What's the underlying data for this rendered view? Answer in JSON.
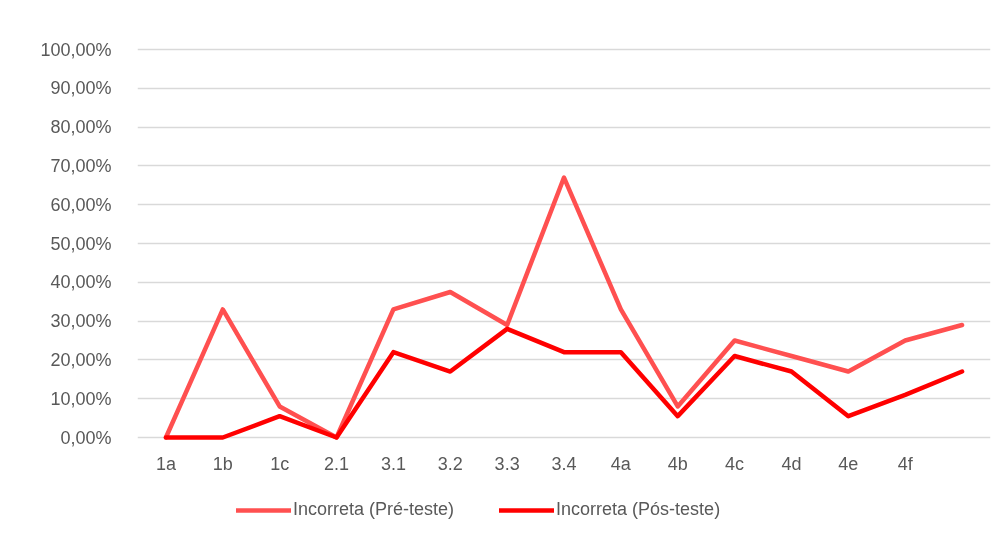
{
  "chart_data": {
    "type": "line",
    "categories": [
      "1a",
      "1b",
      "1c",
      "2.1",
      "3.1",
      "3.2",
      "3.3",
      "3.4",
      "4a",
      "4b",
      "4c",
      "4d",
      "4e",
      "4f",
      null
    ],
    "series": [
      {
        "name": "Incorreta (Pré-teste)",
        "color": "#ff5050",
        "values": [
          0,
          33,
          8,
          0,
          33,
          37.5,
          29,
          67,
          33,
          8,
          25,
          21,
          17,
          25,
          29
        ]
      },
      {
        "name": "Incorreta (Pós-teste)",
        "color": "#ff0000",
        "values": [
          0,
          0,
          5.5,
          0,
          22,
          17,
          28,
          22,
          22,
          5.5,
          21,
          17,
          5.5,
          11,
          17
        ]
      }
    ],
    "ylim": [
      0,
      100
    ],
    "yticks": [
      {
        "value": 0,
        "label": "0,00%"
      },
      {
        "value": 10,
        "label": "10,00%"
      },
      {
        "value": 20,
        "label": "20,00%"
      },
      {
        "value": 30,
        "label": "30,00%"
      },
      {
        "value": 40,
        "label": "40,00%"
      },
      {
        "value": 50,
        "label": "50,00%"
      },
      {
        "value": 60,
        "label": "60,00%"
      },
      {
        "value": 70,
        "label": "70,00%"
      },
      {
        "value": 80,
        "label": "80,00%"
      },
      {
        "value": 90,
        "label": "90,00%"
      },
      {
        "value": 100,
        "label": "100,00%"
      }
    ],
    "grid": "y",
    "legend": "bottom",
    "line_style": "solid"
  }
}
